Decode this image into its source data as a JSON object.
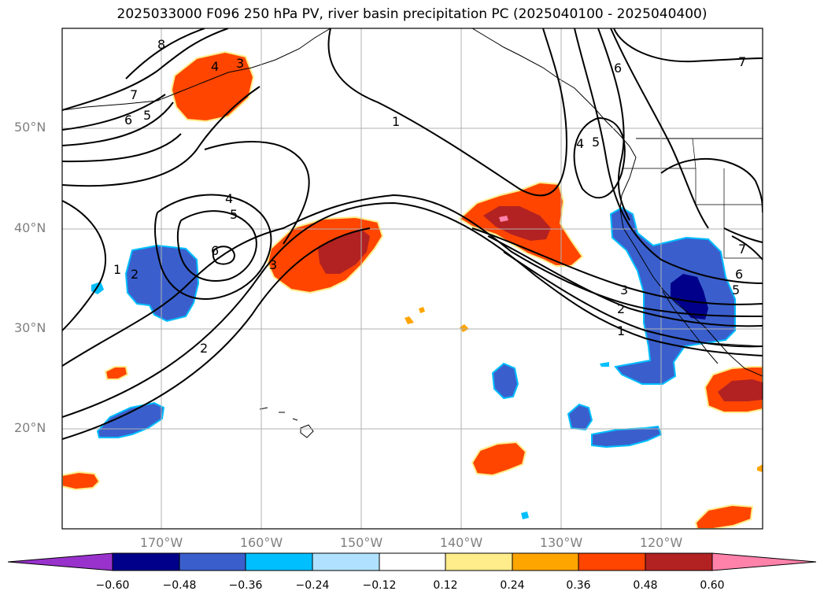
{
  "title": "2025033000 F096 250 hPa PV, river basin precipitation PC (2025040100 - 2025040400)",
  "lat_labels": [
    "50°N",
    "40°N",
    "30°N",
    "20°N"
  ],
  "lon_labels": [
    "170°W",
    "160°W",
    "150°W",
    "140°W",
    "130°W",
    "120°W"
  ],
  "contour_labels": [
    "8",
    "7",
    "6",
    "5",
    "4",
    "3",
    "1",
    "4",
    "5",
    "6",
    "3",
    "2",
    "1",
    "2",
    "4",
    "5",
    "7",
    "7",
    "6",
    "5",
    "3",
    "2",
    "1",
    "6"
  ],
  "colorbar": {
    "ticks": [
      "−0.60",
      "−0.48",
      "−0.36",
      "−0.24",
      "−0.12",
      "0.12",
      "0.24",
      "0.36",
      "0.48",
      "0.60"
    ],
    "colors": [
      "#9932cc",
      "#00008b",
      "#3a5fcd",
      "#00bfff",
      "#b0e2ff",
      "#ffffff",
      "#ffec8b",
      "#ffa500",
      "#ff4500",
      "#b22222",
      "#ff82ab"
    ]
  }
}
